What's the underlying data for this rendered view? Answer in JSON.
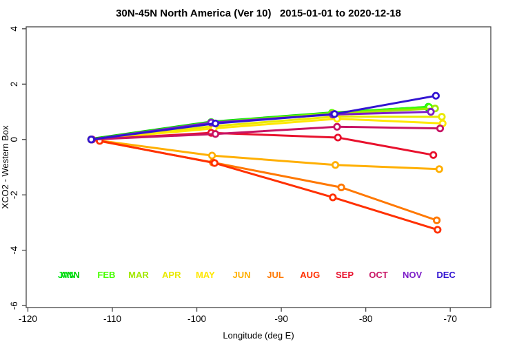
{
  "title": "30N-45N North America (Ver 10)   2015-01-01 to 2020-12-18",
  "chart_data": {
    "type": "line",
    "title": "30N-45N North America (Ver 10)   2015-01-01 to 2020-12-18",
    "xlabel": "Longitude (deg E)",
    "ylabel": "XCO2 - Western Box",
    "xlim": [
      -120.2,
      -65.2
    ],
    "ylim": [
      -6.07,
      4.07
    ],
    "xticks": [
      -120,
      -110,
      -100,
      -90,
      -80,
      -70
    ],
    "yticks": [
      -6,
      -4,
      -2,
      0,
      2,
      4
    ],
    "grid": false,
    "legend_position": "bottom-inside",
    "legend_y": -5.0,
    "axis_color": "#444444",
    "marker": "open-circle",
    "series": [
      {
        "name": "ANN",
        "color": "#00C800",
        "width": 5,
        "label_x": -115.0,
        "x": [
          -112.5,
          -98.3,
          -84.0,
          -72.6
        ],
        "y": [
          0,
          0.62,
          0.95,
          1.15
        ]
      },
      {
        "name": "JAN",
        "color": "#00E619",
        "width": 3,
        "label_x": -115.4,
        "x": [
          -112.5,
          -98.3,
          -84.0,
          -72.6
        ],
        "y": [
          0,
          0.63,
          0.96,
          1.18
        ]
      },
      {
        "name": "FEB",
        "color": "#46FF00",
        "width": 3,
        "label_x": -110.7,
        "x": [
          -112.5,
          -98.3,
          -84.0,
          -72.5
        ],
        "y": [
          0,
          0.62,
          0.96,
          1.17
        ]
      },
      {
        "name": "MAR",
        "color": "#A2E700",
        "width": 3,
        "label_x": -106.9,
        "x": [
          -112.5,
          -98.2,
          -83.9,
          -71.8
        ],
        "y": [
          0,
          0.6,
          0.94,
          1.12
        ]
      },
      {
        "name": "APR",
        "color": "#E9E900",
        "width": 3,
        "label_x": -103.0,
        "x": [
          -112.5,
          -98.1,
          -83.5,
          -71.0
        ],
        "y": [
          0,
          0.48,
          0.83,
          0.82
        ]
      },
      {
        "name": "MAY",
        "color": "#FFE700",
        "width": 3,
        "label_x": -99.0,
        "x": [
          -112.5,
          -98.0,
          -83.4,
          -70.9
        ],
        "y": [
          0,
          0.4,
          0.75,
          0.58
        ]
      },
      {
        "name": "JUN",
        "color": "#FFAF00",
        "width": 3,
        "label_x": -94.7,
        "x": [
          -112.5,
          -98.2,
          -83.6,
          -71.3
        ],
        "y": [
          0,
          -0.58,
          -0.92,
          -1.07
        ]
      },
      {
        "name": "JUL",
        "color": "#FF7800",
        "width": 3,
        "label_x": -90.7,
        "x": [
          -112.5,
          -98.1,
          -82.9,
          -71.6
        ],
        "y": [
          0,
          -0.83,
          -1.73,
          -2.92
        ]
      },
      {
        "name": "AUG",
        "color": "#FF3000",
        "width": 3,
        "label_x": -86.6,
        "x": [
          -111.5,
          -97.9,
          -83.9,
          -71.5
        ],
        "y": [
          -0.05,
          -0.85,
          -2.09,
          -3.26
        ]
      },
      {
        "name": "SEP",
        "color": "#E8112D",
        "width": 3,
        "label_x": -82.5,
        "x": [
          -112.4,
          -98.3,
          -83.3,
          -72.0
        ],
        "y": [
          0,
          0.24,
          0.07,
          -0.56
        ]
      },
      {
        "name": "OCT",
        "color": "#C81464",
        "width": 3,
        "label_x": -78.5,
        "x": [
          -112.4,
          -97.8,
          -83.4,
          -71.2
        ],
        "y": [
          0,
          0.2,
          0.46,
          0.4
        ]
      },
      {
        "name": "NOV",
        "color": "#7D1EC8",
        "width": 3,
        "label_x": -74.5,
        "x": [
          -112.5,
          -98.3,
          -83.9,
          -72.3
        ],
        "y": [
          0,
          0.61,
          0.9,
          1.0
        ]
      },
      {
        "name": "DEC",
        "color": "#3214D2",
        "width": 3,
        "label_x": -70.5,
        "x": [
          -112.5,
          -97.8,
          -83.7,
          -71.7
        ],
        "y": [
          0,
          0.58,
          0.92,
          1.58
        ]
      }
    ]
  }
}
